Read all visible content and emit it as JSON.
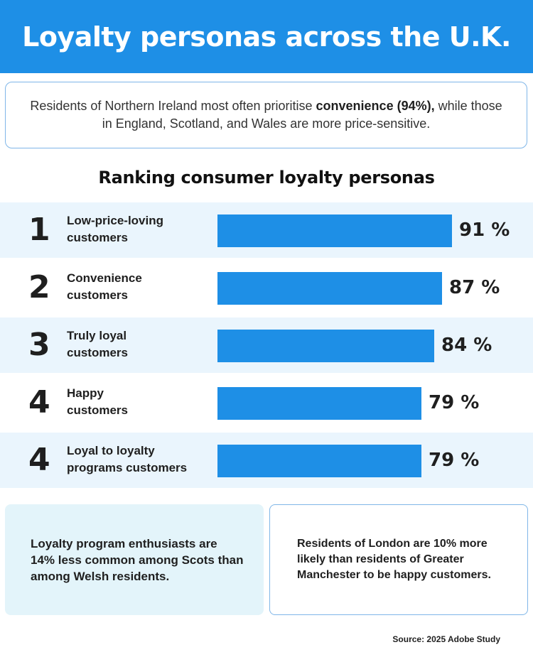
{
  "header": {
    "title": "Loyalty personas across the U.K."
  },
  "intro": {
    "text_before": "Residents of Northern Ireland most often prioritise ",
    "text_bold": "convenience (94%),",
    "text_after": " while those in England, Scotland, and Wales are more price-sensitive."
  },
  "section_title": "Ranking consumer loyalty personas",
  "chart_data": {
    "type": "bar",
    "orientation": "horizontal",
    "title": "Ranking consumer loyalty personas",
    "xlim": [
      0,
      100
    ],
    "value_suffix": " %",
    "ranks": [
      "1",
      "2",
      "3",
      "4",
      "4"
    ],
    "categories": [
      [
        "Low-price-loving",
        "customers"
      ],
      [
        "Convenience",
        "customers"
      ],
      [
        "Truly loyal",
        "customers"
      ],
      [
        "Happy",
        "customers"
      ],
      [
        "Loyal to loyalty",
        "programs customers"
      ]
    ],
    "values": [
      91,
      87,
      84,
      79,
      79
    ],
    "bar_color": "#1e8fe6"
  },
  "facts": {
    "left": "Loyalty program enthusiasts are 14% less common among Scots than among Welsh residents.",
    "right": "Residents of London are 10% more likely than residents of Greater Manchester to be happy customers."
  },
  "source": "Source: 2025 Adobe Study",
  "colors": {
    "accent": "#1e8fe6",
    "row_tint": "#eaf5fd",
    "fact_tint": "#e3f4fa",
    "border": "#7fb6e8"
  }
}
